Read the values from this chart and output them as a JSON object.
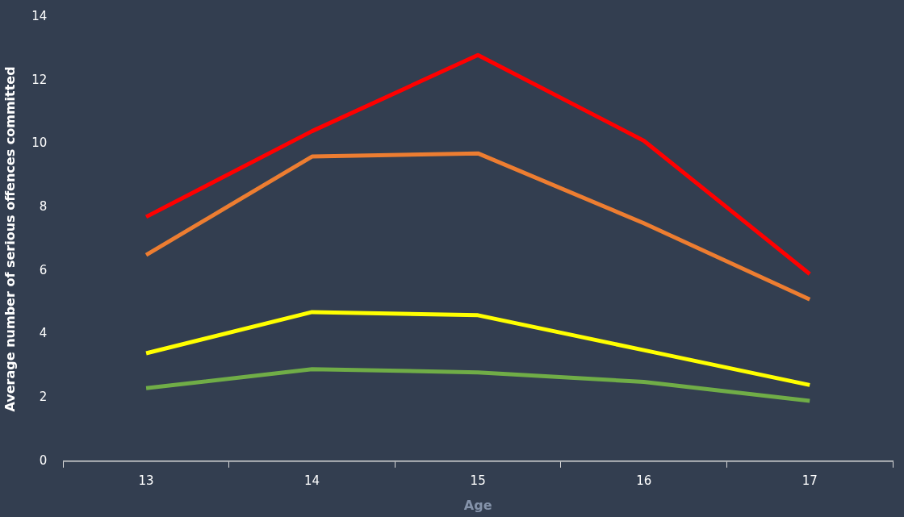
{
  "chart_data": {
    "type": "line",
    "xlabel": "Age",
    "ylabel": "Average number of serious offences committed",
    "categories": [
      "13",
      "14",
      "15",
      "16",
      "17"
    ],
    "series": [
      {
        "color": "#ff0000",
        "values": [
          7.7,
          10.4,
          12.8,
          10.1,
          5.9
        ]
      },
      {
        "color": "#ed7d31",
        "values": [
          6.5,
          9.6,
          9.7,
          7.5,
          5.1
        ]
      },
      {
        "color": "#ffff00",
        "values": [
          3.4,
          4.7,
          4.6,
          3.5,
          2.4
        ]
      },
      {
        "color": "#70ad47",
        "values": [
          2.3,
          2.9,
          2.8,
          2.5,
          1.9
        ]
      }
    ],
    "ylim": [
      0,
      14
    ],
    "yticks": [
      0,
      2,
      4,
      6,
      8,
      10,
      12,
      14
    ],
    "marker": "none",
    "line_style": "solid"
  }
}
